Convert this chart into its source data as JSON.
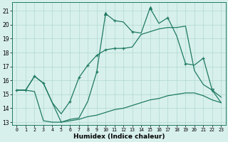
{
  "xlabel": "Humidex (Indice chaleur)",
  "x": [
    0,
    1,
    2,
    3,
    4,
    5,
    6,
    7,
    8,
    9,
    10,
    11,
    12,
    13,
    14,
    15,
    16,
    17,
    18,
    19,
    20,
    21,
    22,
    23
  ],
  "line_upper": [
    15.3,
    15.3,
    16.3,
    15.8,
    14.4,
    13.0,
    13.2,
    13.3,
    14.5,
    16.6,
    20.8,
    20.3,
    20.2,
    19.5,
    19.4,
    21.2,
    20.1,
    20.5,
    19.2,
    17.2,
    17.1,
    17.6,
    15.3,
    14.4
  ],
  "line_mid": [
    15.3,
    15.3,
    16.3,
    15.8,
    14.4,
    13.6,
    14.5,
    16.2,
    17.1,
    17.8,
    18.2,
    18.3,
    18.3,
    18.4,
    19.3,
    19.5,
    19.7,
    19.8,
    19.8,
    19.9,
    16.7,
    15.7,
    15.3,
    14.8
  ],
  "line_lower": [
    15.3,
    15.3,
    15.2,
    13.1,
    13.0,
    13.0,
    13.1,
    13.2,
    13.4,
    13.5,
    13.7,
    13.9,
    14.0,
    14.2,
    14.4,
    14.6,
    14.7,
    14.9,
    15.0,
    15.1,
    15.1,
    14.9,
    14.6,
    14.4
  ],
  "line_color": "#1f7a62",
  "bg_color": "#d8f0ec",
  "grid_color": "#b0d8d0",
  "ylim_min": 12.8,
  "ylim_max": 21.6,
  "yticks": [
    13,
    14,
    15,
    16,
    17,
    18,
    19,
    20,
    21
  ],
  "upper_plus_idx": [
    0,
    1,
    2,
    3,
    9,
    11,
    13,
    17,
    19,
    21
  ],
  "upper_tri_up_idx": [
    10,
    15
  ],
  "upper_tri_down_idx": [
    22
  ],
  "mid_plus_idx": [
    6,
    7,
    8,
    9,
    10,
    11,
    12
  ],
  "lw": 0.9
}
